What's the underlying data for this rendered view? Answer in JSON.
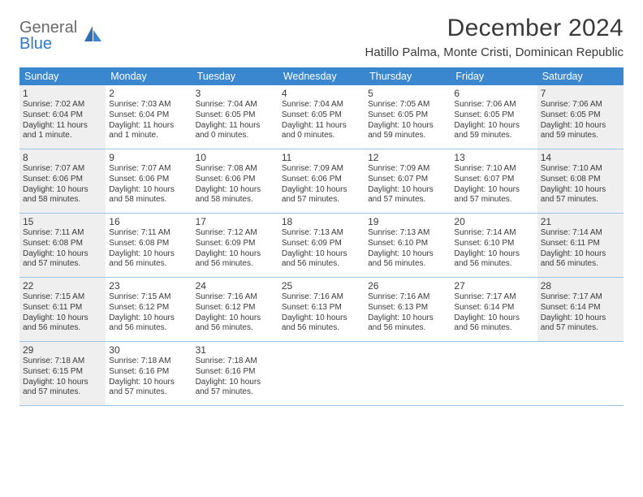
{
  "logo": {
    "line1": "General",
    "line2": "Blue"
  },
  "title": "December 2024",
  "location": "Hatillo Palma, Monte Cristi, Dominican Republic",
  "colors": {
    "header_bg": "#3a87cf",
    "header_text": "#ffffff",
    "border": "#9ec3e5",
    "shaded_bg": "#efefef",
    "logo_gray": "#6a6a6a",
    "logo_blue": "#2f78c2",
    "body_text": "#3a3a3a",
    "background": "#ffffff"
  },
  "day_names": [
    "Sunday",
    "Monday",
    "Tuesday",
    "Wednesday",
    "Thursday",
    "Friday",
    "Saturday"
  ],
  "weeks": [
    [
      {
        "num": "1",
        "shaded": true,
        "sunrise": "Sunrise: 7:02 AM",
        "sunset": "Sunset: 6:04 PM",
        "daylight": "Daylight: 11 hours and 1 minute."
      },
      {
        "num": "2",
        "shaded": false,
        "sunrise": "Sunrise: 7:03 AM",
        "sunset": "Sunset: 6:04 PM",
        "daylight": "Daylight: 11 hours and 1 minute."
      },
      {
        "num": "3",
        "shaded": false,
        "sunrise": "Sunrise: 7:04 AM",
        "sunset": "Sunset: 6:05 PM",
        "daylight": "Daylight: 11 hours and 0 minutes."
      },
      {
        "num": "4",
        "shaded": false,
        "sunrise": "Sunrise: 7:04 AM",
        "sunset": "Sunset: 6:05 PM",
        "daylight": "Daylight: 11 hours and 0 minutes."
      },
      {
        "num": "5",
        "shaded": false,
        "sunrise": "Sunrise: 7:05 AM",
        "sunset": "Sunset: 6:05 PM",
        "daylight": "Daylight: 10 hours and 59 minutes."
      },
      {
        "num": "6",
        "shaded": false,
        "sunrise": "Sunrise: 7:06 AM",
        "sunset": "Sunset: 6:05 PM",
        "daylight": "Daylight: 10 hours and 59 minutes."
      },
      {
        "num": "7",
        "shaded": true,
        "sunrise": "Sunrise: 7:06 AM",
        "sunset": "Sunset: 6:05 PM",
        "daylight": "Daylight: 10 hours and 59 minutes."
      }
    ],
    [
      {
        "num": "8",
        "shaded": true,
        "sunrise": "Sunrise: 7:07 AM",
        "sunset": "Sunset: 6:06 PM",
        "daylight": "Daylight: 10 hours and 58 minutes."
      },
      {
        "num": "9",
        "shaded": false,
        "sunrise": "Sunrise: 7:07 AM",
        "sunset": "Sunset: 6:06 PM",
        "daylight": "Daylight: 10 hours and 58 minutes."
      },
      {
        "num": "10",
        "shaded": false,
        "sunrise": "Sunrise: 7:08 AM",
        "sunset": "Sunset: 6:06 PM",
        "daylight": "Daylight: 10 hours and 58 minutes."
      },
      {
        "num": "11",
        "shaded": false,
        "sunrise": "Sunrise: 7:09 AM",
        "sunset": "Sunset: 6:06 PM",
        "daylight": "Daylight: 10 hours and 57 minutes."
      },
      {
        "num": "12",
        "shaded": false,
        "sunrise": "Sunrise: 7:09 AM",
        "sunset": "Sunset: 6:07 PM",
        "daylight": "Daylight: 10 hours and 57 minutes."
      },
      {
        "num": "13",
        "shaded": false,
        "sunrise": "Sunrise: 7:10 AM",
        "sunset": "Sunset: 6:07 PM",
        "daylight": "Daylight: 10 hours and 57 minutes."
      },
      {
        "num": "14",
        "shaded": true,
        "sunrise": "Sunrise: 7:10 AM",
        "sunset": "Sunset: 6:08 PM",
        "daylight": "Daylight: 10 hours and 57 minutes."
      }
    ],
    [
      {
        "num": "15",
        "shaded": true,
        "sunrise": "Sunrise: 7:11 AM",
        "sunset": "Sunset: 6:08 PM",
        "daylight": "Daylight: 10 hours and 57 minutes."
      },
      {
        "num": "16",
        "shaded": false,
        "sunrise": "Sunrise: 7:11 AM",
        "sunset": "Sunset: 6:08 PM",
        "daylight": "Daylight: 10 hours and 56 minutes."
      },
      {
        "num": "17",
        "shaded": false,
        "sunrise": "Sunrise: 7:12 AM",
        "sunset": "Sunset: 6:09 PM",
        "daylight": "Daylight: 10 hours and 56 minutes."
      },
      {
        "num": "18",
        "shaded": false,
        "sunrise": "Sunrise: 7:13 AM",
        "sunset": "Sunset: 6:09 PM",
        "daylight": "Daylight: 10 hours and 56 minutes."
      },
      {
        "num": "19",
        "shaded": false,
        "sunrise": "Sunrise: 7:13 AM",
        "sunset": "Sunset: 6:10 PM",
        "daylight": "Daylight: 10 hours and 56 minutes."
      },
      {
        "num": "20",
        "shaded": false,
        "sunrise": "Sunrise: 7:14 AM",
        "sunset": "Sunset: 6:10 PM",
        "daylight": "Daylight: 10 hours and 56 minutes."
      },
      {
        "num": "21",
        "shaded": true,
        "sunrise": "Sunrise: 7:14 AM",
        "sunset": "Sunset: 6:11 PM",
        "daylight": "Daylight: 10 hours and 56 minutes."
      }
    ],
    [
      {
        "num": "22",
        "shaded": true,
        "sunrise": "Sunrise: 7:15 AM",
        "sunset": "Sunset: 6:11 PM",
        "daylight": "Daylight: 10 hours and 56 minutes."
      },
      {
        "num": "23",
        "shaded": false,
        "sunrise": "Sunrise: 7:15 AM",
        "sunset": "Sunset: 6:12 PM",
        "daylight": "Daylight: 10 hours and 56 minutes."
      },
      {
        "num": "24",
        "shaded": false,
        "sunrise": "Sunrise: 7:16 AM",
        "sunset": "Sunset: 6:12 PM",
        "daylight": "Daylight: 10 hours and 56 minutes."
      },
      {
        "num": "25",
        "shaded": false,
        "sunrise": "Sunrise: 7:16 AM",
        "sunset": "Sunset: 6:13 PM",
        "daylight": "Daylight: 10 hours and 56 minutes."
      },
      {
        "num": "26",
        "shaded": false,
        "sunrise": "Sunrise: 7:16 AM",
        "sunset": "Sunset: 6:13 PM",
        "daylight": "Daylight: 10 hours and 56 minutes."
      },
      {
        "num": "27",
        "shaded": false,
        "sunrise": "Sunrise: 7:17 AM",
        "sunset": "Sunset: 6:14 PM",
        "daylight": "Daylight: 10 hours and 56 minutes."
      },
      {
        "num": "28",
        "shaded": true,
        "sunrise": "Sunrise: 7:17 AM",
        "sunset": "Sunset: 6:14 PM",
        "daylight": "Daylight: 10 hours and 57 minutes."
      }
    ],
    [
      {
        "num": "29",
        "shaded": true,
        "sunrise": "Sunrise: 7:18 AM",
        "sunset": "Sunset: 6:15 PM",
        "daylight": "Daylight: 10 hours and 57 minutes."
      },
      {
        "num": "30",
        "shaded": false,
        "sunrise": "Sunrise: 7:18 AM",
        "sunset": "Sunset: 6:16 PM",
        "daylight": "Daylight: 10 hours and 57 minutes."
      },
      {
        "num": "31",
        "shaded": false,
        "sunrise": "Sunrise: 7:18 AM",
        "sunset": "Sunset: 6:16 PM",
        "daylight": "Daylight: 10 hours and 57 minutes."
      },
      {
        "num": "",
        "shaded": false,
        "sunrise": "",
        "sunset": "",
        "daylight": ""
      },
      {
        "num": "",
        "shaded": false,
        "sunrise": "",
        "sunset": "",
        "daylight": ""
      },
      {
        "num": "",
        "shaded": false,
        "sunrise": "",
        "sunset": "",
        "daylight": ""
      },
      {
        "num": "",
        "shaded": false,
        "sunrise": "",
        "sunset": "",
        "daylight": ""
      }
    ]
  ]
}
